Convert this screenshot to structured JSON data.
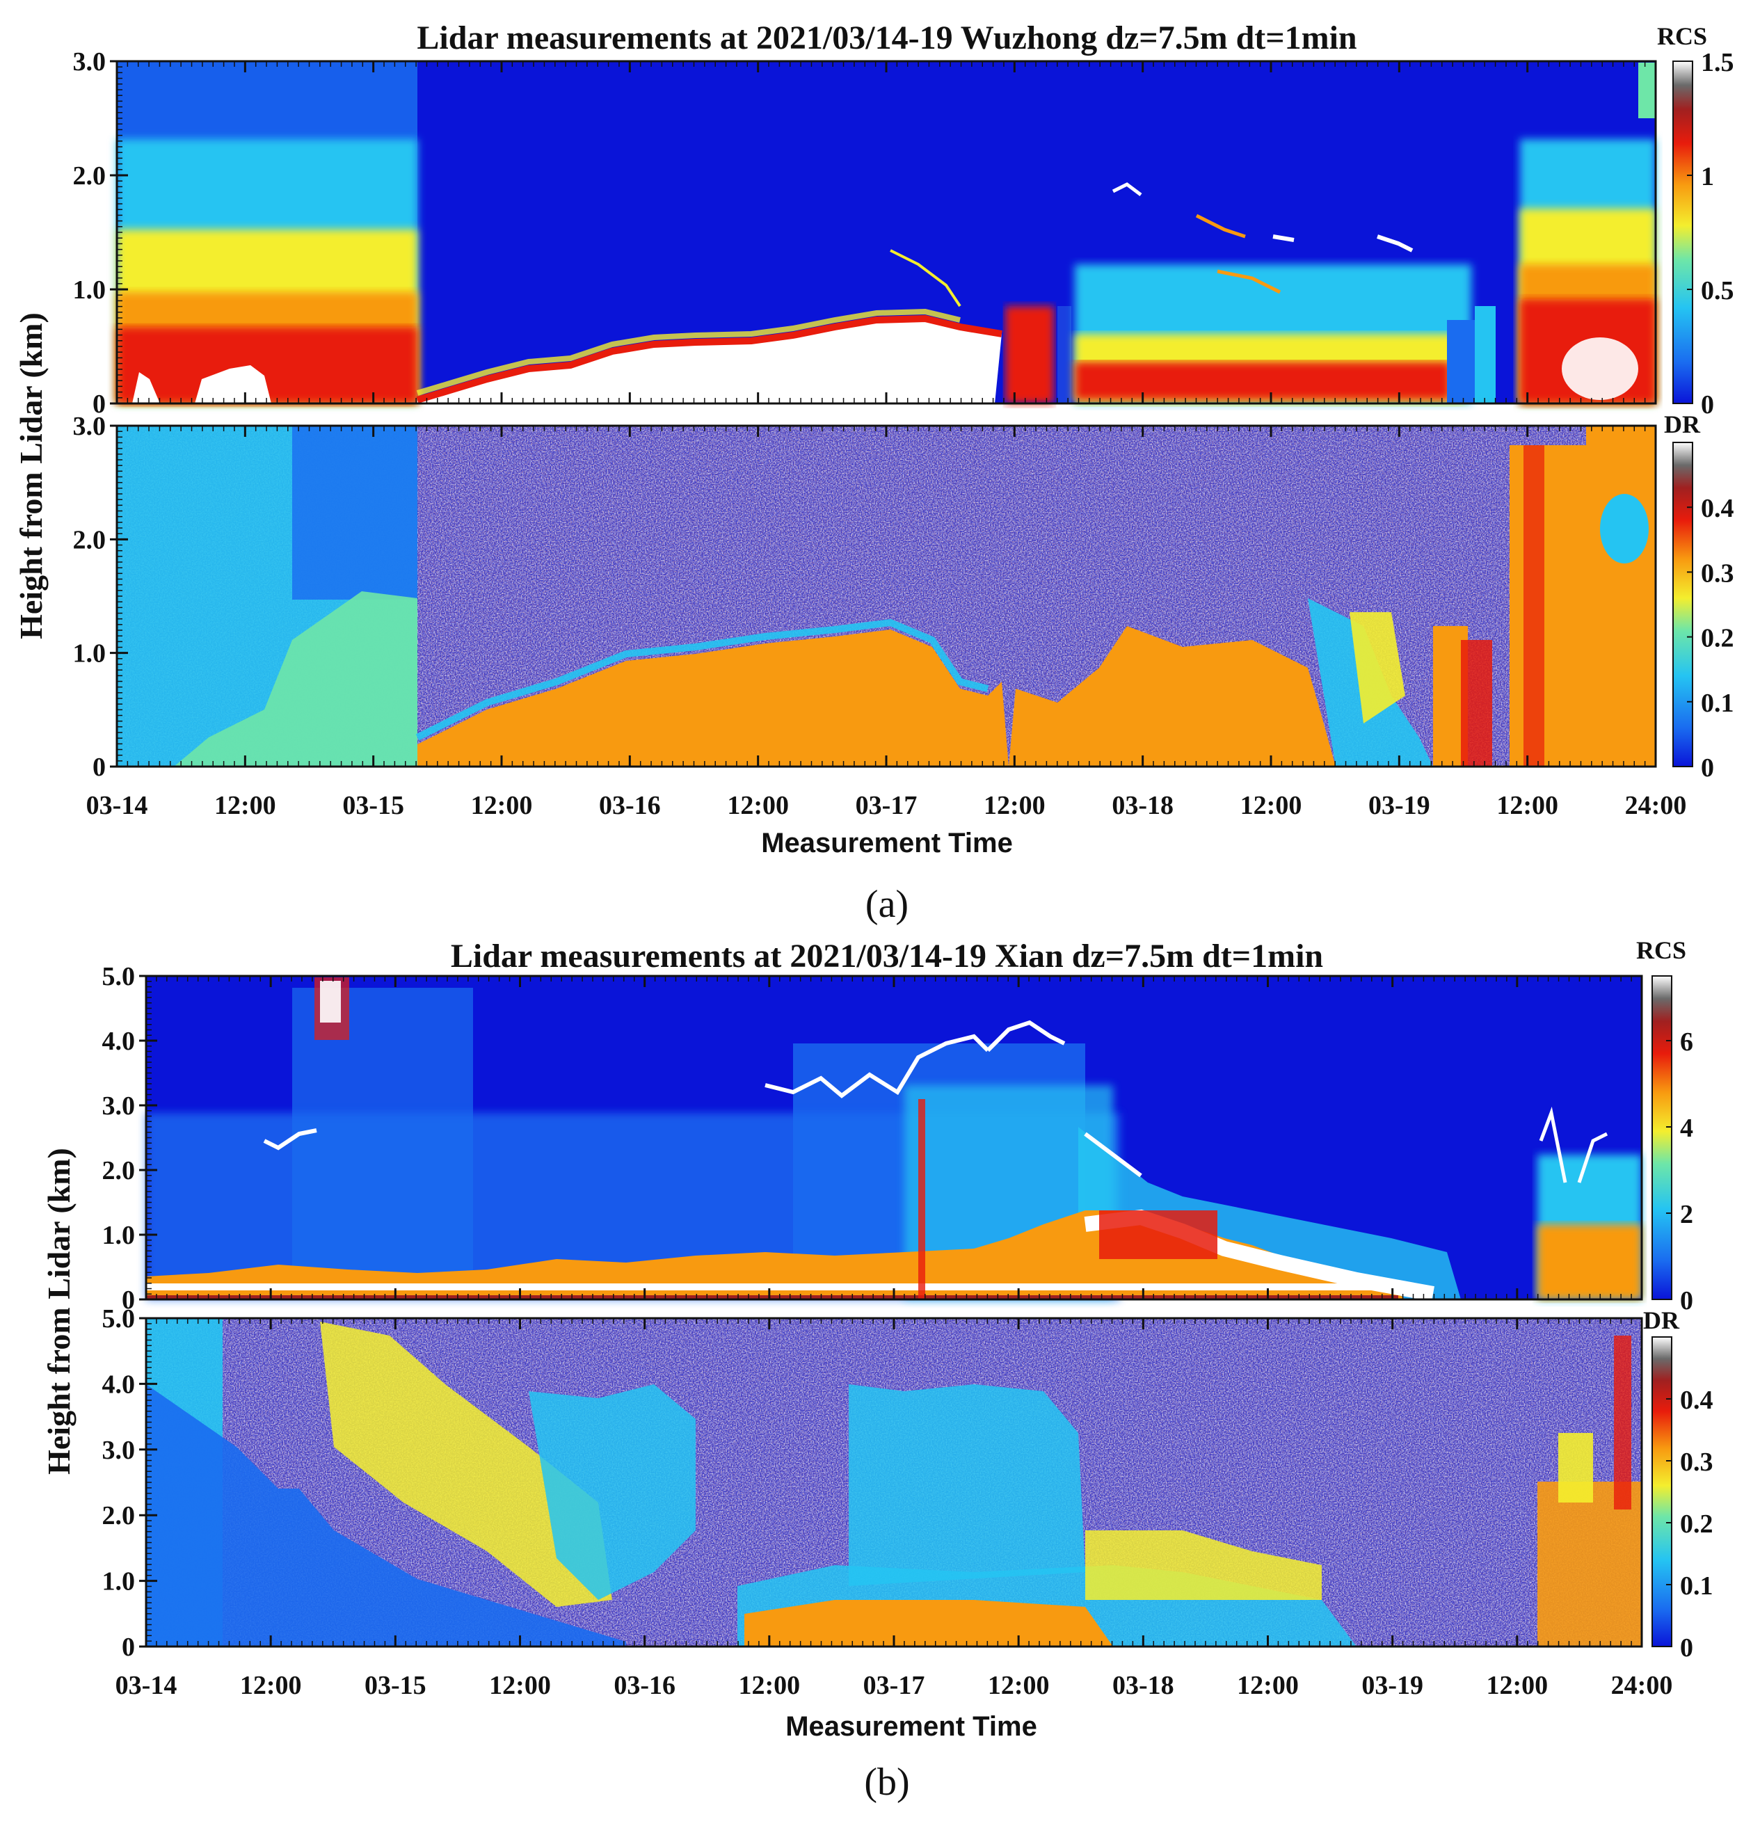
{
  "chart_data": [
    {
      "type": "heatmap",
      "panel_label": "(a)",
      "title": "Lidar measurements at 2021/03/14-19 Wuzhong dz=7.5m dt=1min",
      "ylabel": "Height from Lidar (km)",
      "xlabel": "Measurement Time",
      "x_tick_labels": [
        "03-14",
        "12:00",
        "03-15",
        "12:00",
        "03-16",
        "12:00",
        "03-17",
        "12:00",
        "03-18",
        "12:00",
        "03-19",
        "12:00",
        "24:00"
      ],
      "x_tick_hours": [
        0,
        12,
        24,
        36,
        48,
        60,
        72,
        84,
        96,
        108,
        120,
        132,
        144
      ],
      "x_range_hours": [
        0,
        144
      ],
      "subplots": [
        {
          "variable": "RCS",
          "colorbar_label": "RCS",
          "ylim": [
            0,
            3.0
          ],
          "y_tick_values": [
            0,
            1.0,
            2.0,
            3.0
          ],
          "y_tick_labels": [
            "0",
            "1.0",
            "2.0",
            "3.0"
          ],
          "colorbar_range": [
            0,
            1.5
          ],
          "colorbar_tick_values": [
            0,
            0.5,
            1,
            1.5
          ],
          "colorbar_tick_labels": [
            "0",
            "0.5",
            "1",
            "1.5"
          ]
        },
        {
          "variable": "DR",
          "colorbar_label": "DR",
          "ylim": [
            0,
            3.0
          ],
          "y_tick_values": [
            0,
            1.0,
            2.0,
            3.0
          ],
          "y_tick_labels": [
            "0",
            "1.0",
            "2.0",
            "3.0"
          ],
          "colorbar_range": [
            0,
            0.5
          ],
          "colorbar_tick_values": [
            0,
            0.1,
            0.2,
            0.3,
            0.4
          ],
          "colorbar_tick_labels": [
            "0",
            "0.1",
            "0.2",
            "0.3",
            "0.4"
          ]
        }
      ]
    },
    {
      "type": "heatmap",
      "panel_label": "(b)",
      "title": "Lidar measurements at 2021/03/14-19 Xian dz=7.5m dt=1min",
      "ylabel": "Height from Lidar (km)",
      "xlabel": "Measurement Time",
      "x_tick_labels": [
        "03-14",
        "12:00",
        "03-15",
        "12:00",
        "03-16",
        "12:00",
        "03-17",
        "12:00",
        "03-18",
        "12:00",
        "03-19",
        "12:00",
        "24:00"
      ],
      "x_tick_hours": [
        0,
        12,
        24,
        36,
        48,
        60,
        72,
        84,
        96,
        108,
        120,
        132,
        144
      ],
      "x_range_hours": [
        0,
        144
      ],
      "subplots": [
        {
          "variable": "RCS",
          "colorbar_label": "RCS",
          "ylim": [
            0,
            5.0
          ],
          "y_tick_values": [
            0,
            1.0,
            2.0,
            3.0,
            4.0,
            5.0
          ],
          "y_tick_labels": [
            "0",
            "1.0",
            "2.0",
            "3.0",
            "4.0",
            "5.0"
          ],
          "colorbar_range": [
            0,
            7.5
          ],
          "colorbar_tick_values": [
            0,
            2,
            4,
            6
          ],
          "colorbar_tick_labels": [
            "0",
            "2",
            "4",
            "6"
          ]
        },
        {
          "variable": "DR",
          "colorbar_label": "DR",
          "ylim": [
            0,
            5.0
          ],
          "y_tick_values": [
            0,
            1.0,
            2.0,
            3.0,
            4.0,
            5.0
          ],
          "y_tick_labels": [
            "0",
            "1.0",
            "2.0",
            "3.0",
            "4.0",
            "5.0"
          ],
          "colorbar_range": [
            0,
            0.5
          ],
          "colorbar_tick_values": [
            0,
            0.1,
            0.2,
            0.3,
            0.4
          ],
          "colorbar_tick_labels": [
            "0",
            "0.1",
            "0.2",
            "0.3",
            "0.4"
          ]
        }
      ]
    }
  ],
  "colormap_stops": [
    "#0a14d8",
    "#1a6cf0",
    "#25c4f2",
    "#6ee6a8",
    "#f4ee2e",
    "#f89a10",
    "#e81c0c",
    "#a02020",
    "#6a6a6a",
    "#ffffff"
  ]
}
